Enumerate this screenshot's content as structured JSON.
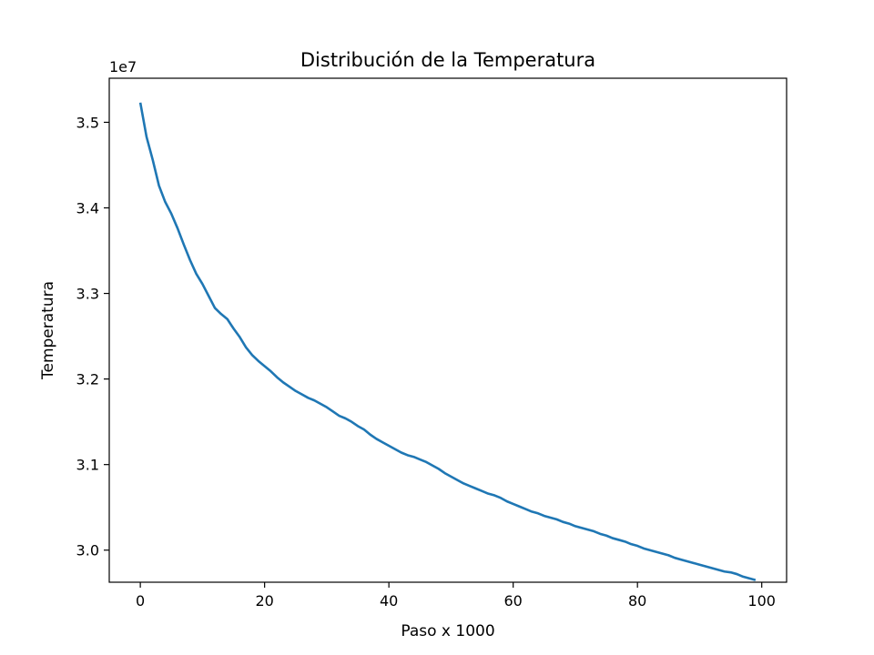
{
  "chart_data": {
    "type": "line",
    "title": "Distribución de la Temperatura",
    "xlabel": "Paso x 1000",
    "ylabel": "Temperatura",
    "y_offset_label": "1e7",
    "y_multiplier": 10000000,
    "xlim": [
      -5,
      104
    ],
    "ylim": [
      2.9625,
      3.5515
    ],
    "xticks": [
      0,
      20,
      40,
      60,
      80,
      100
    ],
    "yticks": [
      3.0,
      3.1,
      3.2,
      3.3,
      3.4,
      3.5
    ],
    "xtick_labels": [
      "0",
      "20",
      "40",
      "60",
      "80",
      "100"
    ],
    "ytick_labels": [
      "3.0",
      "3.1",
      "3.2",
      "3.3",
      "3.4",
      "3.5"
    ],
    "grid": false,
    "legend": "none",
    "color": "#1f77b4",
    "series": [
      {
        "x": [
          0,
          1,
          2,
          3,
          4,
          5,
          6,
          7,
          8,
          9,
          10,
          11,
          12,
          13,
          14,
          15,
          16,
          17,
          18,
          19,
          20,
          21,
          22,
          23,
          24,
          25,
          26,
          27,
          28,
          29,
          30,
          31,
          32,
          33,
          34,
          35,
          36,
          37,
          38,
          39,
          40,
          41,
          42,
          43,
          44,
          45,
          46,
          47,
          48,
          49,
          50,
          51,
          52,
          53,
          54,
          55,
          56,
          57,
          58,
          59,
          60,
          61,
          62,
          63,
          64,
          65,
          66,
          67,
          68,
          69,
          70,
          71,
          72,
          73,
          74,
          75,
          76,
          77,
          78,
          79,
          80,
          81,
          82,
          83,
          84,
          85,
          86,
          87,
          88,
          89,
          90,
          91,
          92,
          93,
          94,
          95,
          96,
          97,
          98,
          99
        ],
        "values": [
          3.523,
          3.483,
          3.456,
          3.426,
          3.407,
          3.393,
          3.376,
          3.357,
          3.339,
          3.323,
          3.311,
          3.297,
          3.283,
          3.276,
          3.27,
          3.259,
          3.249,
          3.237,
          3.228,
          3.221,
          3.215,
          3.209,
          3.202,
          3.196,
          3.191,
          3.186,
          3.182,
          3.178,
          3.175,
          3.171,
          3.167,
          3.162,
          3.157,
          3.154,
          3.15,
          3.145,
          3.141,
          3.135,
          3.13,
          3.126,
          3.122,
          3.118,
          3.114,
          3.111,
          3.109,
          3.106,
          3.103,
          3.099,
          3.095,
          3.09,
          3.086,
          3.082,
          3.078,
          3.075,
          3.072,
          3.069,
          3.066,
          3.064,
          3.061,
          3.057,
          3.054,
          3.051,
          3.048,
          3.045,
          3.043,
          3.04,
          3.038,
          3.036,
          3.033,
          3.031,
          3.028,
          3.026,
          3.024,
          3.022,
          3.019,
          3.017,
          3.014,
          3.012,
          3.01,
          3.007,
          3.005,
          3.002,
          3.0,
          2.998,
          2.996,
          2.994,
          2.991,
          2.989,
          2.987,
          2.985,
          2.983,
          2.981,
          2.979,
          2.977,
          2.975,
          2.974,
          2.972,
          2.969,
          2.967,
          2.965
        ]
      }
    ]
  }
}
